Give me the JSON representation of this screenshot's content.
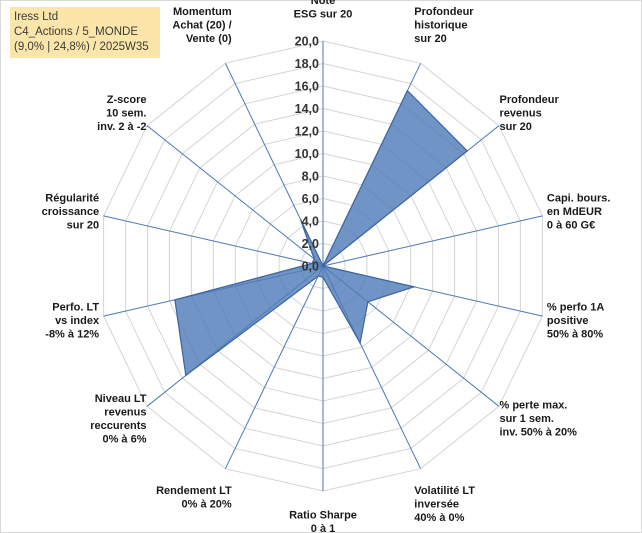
{
  "info": {
    "line1": "Iress Ltd",
    "line2": "C4_Actions / 5_MONDE",
    "line3": "(9,0% | 24,8%) / 2025W35"
  },
  "chart_data": {
    "type": "radar",
    "rmax": 20,
    "ticks": [
      "0,0",
      "2,0",
      "4,0",
      "6,0",
      "8,0",
      "10,0",
      "12,0",
      "14,0",
      "16,0",
      "18,0",
      "20,0"
    ],
    "series_color": "#4f7cb8",
    "grid": true,
    "axes": [
      {
        "label": [
          "Note",
          "ESG sur 20"
        ],
        "value": 0
      },
      {
        "label": [
          "Profondeur",
          "historique",
          "sur 20"
        ],
        "value": 17.3
      },
      {
        "label": [
          "Profondeur",
          "revenus",
          "sur 20"
        ],
        "value": 16.4
      },
      {
        "label": [
          "Capi. bours.",
          "en MdEUR",
          "0 à 60 G€"
        ],
        "value": 0
      },
      {
        "label": [
          "% perfo 1A",
          "positive",
          "50% à 80%"
        ],
        "value": 8.3
      },
      {
        "label": [
          "% perte max.",
          "sur 1 sem.",
          "inv. 50% à 20%"
        ],
        "value": 5.1
      },
      {
        "label": [
          "Volatilité LT",
          "inversée",
          "40% à 0%"
        ],
        "value": 7.6
      },
      {
        "label": [
          "Ratio Sharpe",
          "0 à 1"
        ],
        "value": 1.0
      },
      {
        "label": [
          "Rendement LT",
          "0% à 20%"
        ],
        "value": 1.0
      },
      {
        "label": [
          "Niveau LT",
          "revenus",
          "reccurents",
          "0% à 6%"
        ],
        "value": 15.6
      },
      {
        "label": [
          "Perfo. LT",
          "vs index",
          "-8% à 12%"
        ],
        "value": 13.5
      },
      {
        "label": [
          "Régularité",
          "croissance",
          "sur 20"
        ],
        "value": 1.0
      },
      {
        "label": [
          "Z-score",
          "10 sem.",
          "inv. 2 à -2"
        ],
        "value": 1.0
      },
      {
        "label": [
          "Momentum",
          "Achat (20) /",
          "Vente (0)"
        ],
        "value": 4.6
      }
    ]
  }
}
